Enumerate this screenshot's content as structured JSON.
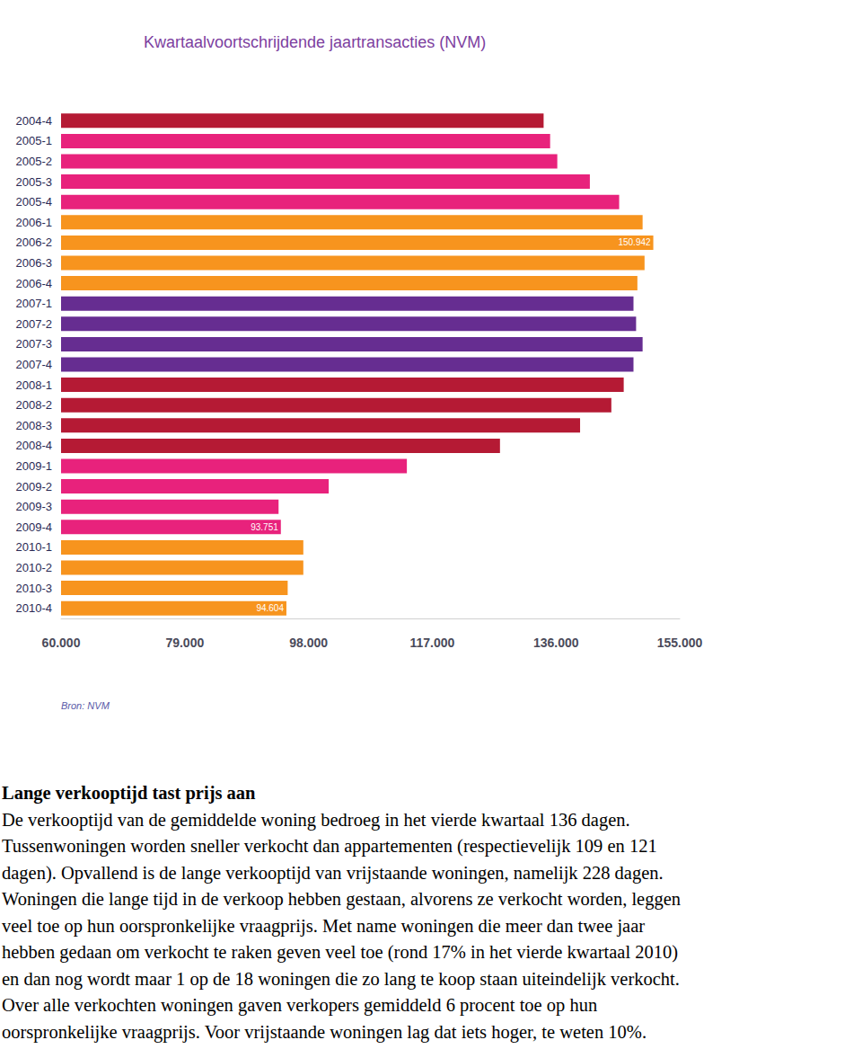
{
  "chart_data": {
    "type": "bar",
    "orientation": "horizontal",
    "title": "Kwartaalvoortschrijdende jaartransacties (NVM)",
    "source": "Bron: NVM",
    "categories": [
      "2004-4",
      "2005-1",
      "2005-2",
      "2005-3",
      "2005-4",
      "2006-1",
      "2006-2",
      "2006-3",
      "2006-4",
      "2007-1",
      "2007-2",
      "2007-3",
      "2007-4",
      "2008-1",
      "2008-2",
      "2008-3",
      "2008-4",
      "2009-1",
      "2009-2",
      "2009-3",
      "2009-4",
      "2010-1",
      "2010-2",
      "2010-3",
      "2010-4"
    ],
    "values": [
      134100,
      135100,
      136200,
      141200,
      145700,
      149300,
      150942,
      149600,
      148500,
      147900,
      148300,
      149300,
      147900,
      146400,
      144500,
      139700,
      127400,
      113100,
      101100,
      93400,
      93751,
      97200,
      97200,
      94800,
      94604
    ],
    "value_labels": [
      null,
      null,
      null,
      null,
      null,
      null,
      "150.942",
      null,
      null,
      null,
      null,
      null,
      null,
      null,
      null,
      null,
      null,
      null,
      null,
      null,
      "93.751",
      null,
      null,
      null,
      "94.604"
    ],
    "colors": [
      "#b51a34",
      "#e8227c",
      "#e8227c",
      "#e8227c",
      "#e8227c",
      "#f7941e",
      "#f7941e",
      "#f7941e",
      "#f7941e",
      "#662d91",
      "#662d91",
      "#662d91",
      "#662d91",
      "#b51a34",
      "#b51a34",
      "#b51a34",
      "#b51a34",
      "#e8227c",
      "#e8227c",
      "#e8227c",
      "#e8227c",
      "#f7941e",
      "#f7941e",
      "#f7941e",
      "#f7941e"
    ],
    "xlim": [
      60000,
      155000
    ],
    "xticks": [
      {
        "value": 60000,
        "label": "60.000"
      },
      {
        "value": 79000,
        "label": "79.000"
      },
      {
        "value": 98000,
        "label": "98.000"
      },
      {
        "value": 117000,
        "label": "117.000"
      },
      {
        "value": 136000,
        "label": "136.000"
      },
      {
        "value": 155000,
        "label": "155.000"
      }
    ],
    "data_labels": true,
    "grid": false
  },
  "document": {
    "heading": "Lange verkooptijd tast prijs aan",
    "lines": [
      "De verkooptijd van de gemiddelde woning bedroeg in het vierde kwartaal 136 dagen.",
      "Tussenwoningen worden sneller verkocht dan appartementen (respectievelijk 109 en 121",
      "dagen). Opvallend is de lange verkooptijd van vrijstaande woningen, namelijk 228 dagen.",
      "Woningen die lange tijd in de verkoop hebben gestaan, alvorens ze verkocht worden, leggen",
      "veel toe op hun oorspronkelijke vraagprijs. Met name woningen die meer dan twee jaar",
      "hebben gedaan om verkocht te raken geven veel toe (rond 17% in het vierde kwartaal 2010)",
      "en dan nog wordt maar 1 op de 18 woningen die zo lang te koop staan uiteindelijk verkocht.",
      "Over alle verkochten woningen gaven verkopers gemiddeld 6 procent toe op hun",
      "oorspronkelijke vraagprijs. Voor vrijstaande woningen lag dat iets hoger, te weten 10%."
    ]
  }
}
